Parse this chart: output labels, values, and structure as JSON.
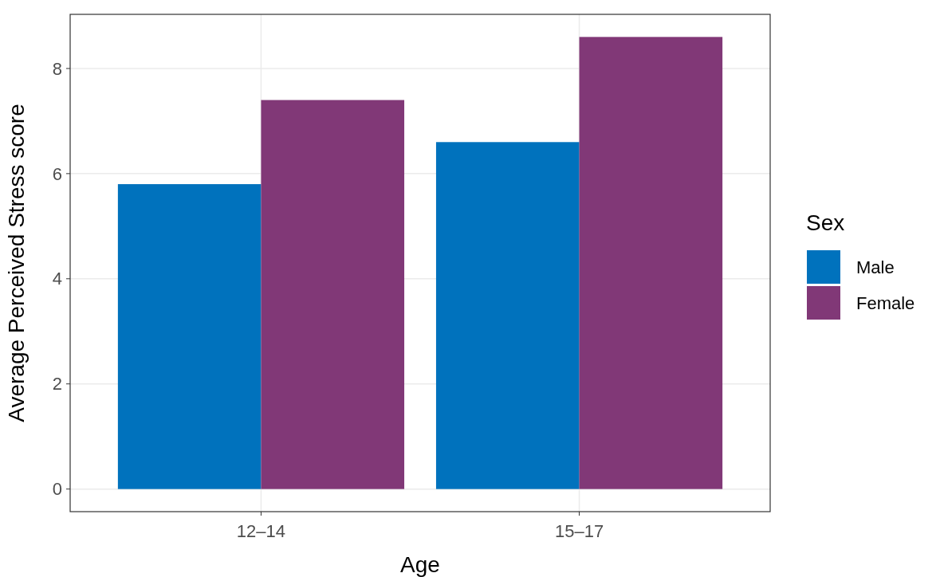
{
  "chart_data": {
    "type": "bar",
    "xlabel": "Age",
    "ylabel": "Average Perceived Stress score",
    "legend_title": "Sex",
    "categories": [
      "12–14",
      "15–17"
    ],
    "series": [
      {
        "name": "Male",
        "color": "#0072bd",
        "values": [
          5.8,
          6.6
        ]
      },
      {
        "name": "Female",
        "color": "#813877",
        "values": [
          7.4,
          8.6
        ]
      }
    ],
    "ylim": [
      -0.43,
      9.03
    ],
    "yticks": [
      0,
      2,
      4,
      6,
      8
    ],
    "grid": true,
    "legend": "right"
  }
}
